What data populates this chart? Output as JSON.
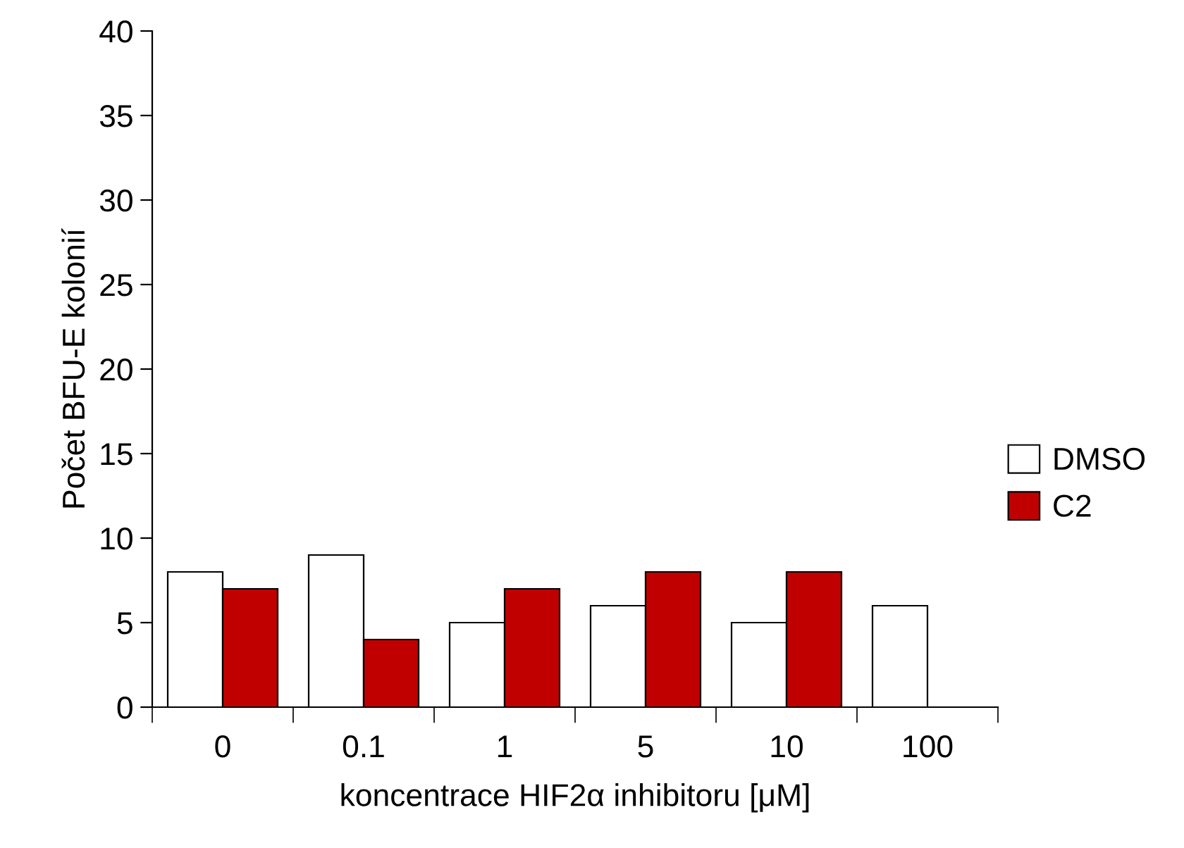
{
  "chart_data": {
    "type": "bar",
    "xlabel": "koncentrace HIF2α inhibitoru [μM]",
    "ylabel": "Počet BFU-E kolonií",
    "categories": [
      "0",
      "0.1",
      "1",
      "5",
      "10",
      "100"
    ],
    "series": [
      {
        "name": "DMSO",
        "color": "#ffffff",
        "values": [
          8,
          9,
          5,
          6,
          5,
          6
        ]
      },
      {
        "name": "C2",
        "color": "#c00000",
        "values": [
          7,
          4,
          7,
          8,
          8,
          null
        ]
      }
    ],
    "ylim": [
      0,
      40
    ],
    "yticks": [
      0,
      5,
      10,
      15,
      20,
      25,
      30,
      35,
      40
    ],
    "grid": false,
    "legend": "right"
  }
}
